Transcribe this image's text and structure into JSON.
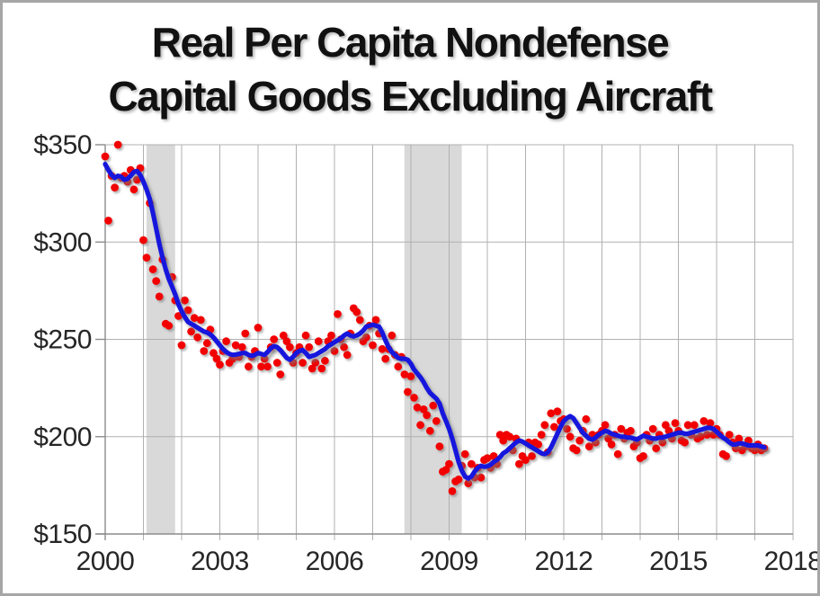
{
  "title": {
    "line1": "Real Per Capita Nondefense",
    "line2": "Capital Goods Excluding Aircraft"
  },
  "colors": {
    "dot": "#f20500",
    "trend": "#1313dd",
    "gridline": "#b0b0b0",
    "axis": "#8c8c8c",
    "recession_band": "#d9d9d9",
    "label_text": "#262626",
    "frame_border": "#a6a6a6",
    "background": "#ffffff"
  },
  "chart_data": {
    "type": "scatter",
    "title": "Real Per Capita Nondefense Capital Goods Excluding Aircraft",
    "xlabel": "",
    "ylabel": "",
    "x_axis": {
      "range": [
        2000,
        2018
      ],
      "tick_years": [
        2000,
        2001,
        2002,
        2003,
        2004,
        2005,
        2006,
        2007,
        2008,
        2009,
        2010,
        2011,
        2012,
        2013,
        2014,
        2015,
        2016,
        2017,
        2018
      ],
      "label_years": [
        2000,
        2003,
        2006,
        2009,
        2012,
        2015,
        2018
      ],
      "label_texts": [
        "2000",
        "2003",
        "2006",
        "2009",
        "2012",
        "2015",
        "2018"
      ]
    },
    "y_axis": {
      "range": [
        150,
        350
      ],
      "ticks": [
        150,
        200,
        250,
        300,
        350
      ],
      "tick_labels": [
        "$150",
        "$200",
        "$250",
        "$300",
        "$350"
      ]
    },
    "grid": true,
    "legend": false,
    "recession_bands": [
      [
        2001.08,
        2001.83
      ],
      [
        2007.83,
        2009.33
      ]
    ],
    "months_start_year": 2000,
    "months_step": 0.0833333,
    "series": [
      {
        "name": "monthly-orders",
        "style": "scatter",
        "color": "#f20500",
        "values": [
          344,
          311,
          334,
          328,
          350,
          333,
          334,
          331,
          337,
          327,
          332,
          338,
          301,
          292,
          320,
          286,
          280,
          272,
          291,
          258,
          257,
          282,
          270,
          262,
          247,
          270,
          265,
          254,
          261,
          251,
          260,
          244,
          248,
          255,
          243,
          240,
          237,
          244,
          249,
          238,
          240,
          247,
          241,
          246,
          253,
          236,
          241,
          244,
          256,
          236,
          240,
          236,
          246,
          250,
          238,
          232,
          252,
          249,
          246,
          238,
          243,
          246,
          238,
          252,
          246,
          235,
          238,
          249,
          235,
          239,
          249,
          252,
          244,
          263,
          250,
          246,
          242,
          253,
          266,
          264,
          260,
          249,
          251,
          257,
          247,
          260,
          253,
          245,
          240,
          245,
          252,
          242,
          236,
          241,
          232,
          223,
          231,
          220,
          215,
          206,
          214,
          211,
          203,
          216,
          208,
          195,
          182,
          183,
          186,
          172,
          177,
          178,
          185,
          191,
          176,
          186,
          179,
          184,
          179,
          188,
          189,
          184,
          190,
          186,
          201,
          198,
          201,
          200,
          193,
          199,
          186,
          190,
          188,
          197,
          190,
          197,
          196,
          201,
          206,
          192,
          212,
          205,
          213,
          208,
          209,
          204,
          200,
          194,
          193,
          198,
          203,
          209,
          195,
          201,
          197,
          201,
          203,
          206,
          199,
          196,
          201,
          191,
          204,
          199,
          202,
          203,
          195,
          197,
          189,
          190,
          201,
          198,
          204,
          194,
          201,
          197,
          206,
          203,
          199,
          207,
          203,
          198,
          197,
          206,
          201,
          206,
          199,
          200,
          208,
          201,
          207,
          201,
          204,
          201,
          191,
          190,
          201,
          197,
          194,
          199,
          193,
          195,
          198,
          194,
          193,
          196,
          193,
          194
        ]
      },
      {
        "name": "trend",
        "style": "line",
        "color": "#1313dd",
        "values": [
          340,
          337,
          334.5,
          333,
          334,
          333.5,
          332,
          332.5,
          334,
          336,
          336.5,
          334.5,
          331,
          327,
          322,
          315,
          307,
          299,
          292,
          286,
          281,
          277,
          273,
          268,
          264.5,
          261.5,
          259,
          258,
          257,
          256,
          255,
          254,
          253.5,
          252.5,
          251,
          249,
          247,
          245,
          243.5,
          242.5,
          242,
          242.2,
          242.5,
          243,
          243,
          242,
          241.5,
          242,
          243,
          242.5,
          242,
          243.5,
          245.5,
          246.5,
          246,
          244.5,
          242.5,
          240.5,
          239.5,
          241,
          243,
          244,
          244.5,
          243,
          241,
          241.5,
          242,
          243,
          244,
          245,
          246.5,
          247.5,
          248.5,
          249.5,
          250.5,
          252,
          253,
          252,
          251.5,
          252,
          253,
          254.5,
          256.5,
          257,
          257.5,
          257,
          256.5,
          253.5,
          249.5,
          246,
          243.5,
          242,
          240.5,
          240,
          240,
          239.5,
          237.5,
          234.5,
          232.5,
          230.5,
          228,
          225,
          222.5,
          221,
          219.5,
          217,
          212,
          208,
          204,
          199,
          193,
          187,
          182.5,
          179.5,
          178.5,
          179.5,
          182,
          184,
          185,
          184.5,
          184.8,
          185.5,
          187,
          188,
          189.5,
          191.5,
          192.5,
          194,
          195.5,
          197,
          198,
          197.5,
          196.5,
          195.5,
          194.5,
          193.5,
          192.5,
          191.5,
          191,
          192,
          194.5,
          198,
          201.5,
          205,
          208,
          209.5,
          210.5,
          209.5,
          207,
          204.5,
          202,
          200.5,
          199,
          198.5,
          199.5,
          201,
          202,
          203,
          202.5,
          201.5,
          201,
          200.5,
          200,
          200,
          199.5,
          199.5,
          199,
          198.5,
          199.5,
          200.5,
          200,
          199.5,
          199,
          199,
          199.5,
          199.5,
          200,
          200.5,
          201,
          201.5,
          202,
          202,
          201.5,
          201.5,
          202,
          202.5,
          203,
          203.5,
          204,
          204.5,
          204.5,
          204,
          202.5,
          201,
          199.5,
          198.5,
          197,
          196,
          196,
          196.5,
          196.5,
          196,
          195.5,
          195.5,
          195.5,
          195.5,
          195,
          194.5
        ]
      }
    ]
  }
}
